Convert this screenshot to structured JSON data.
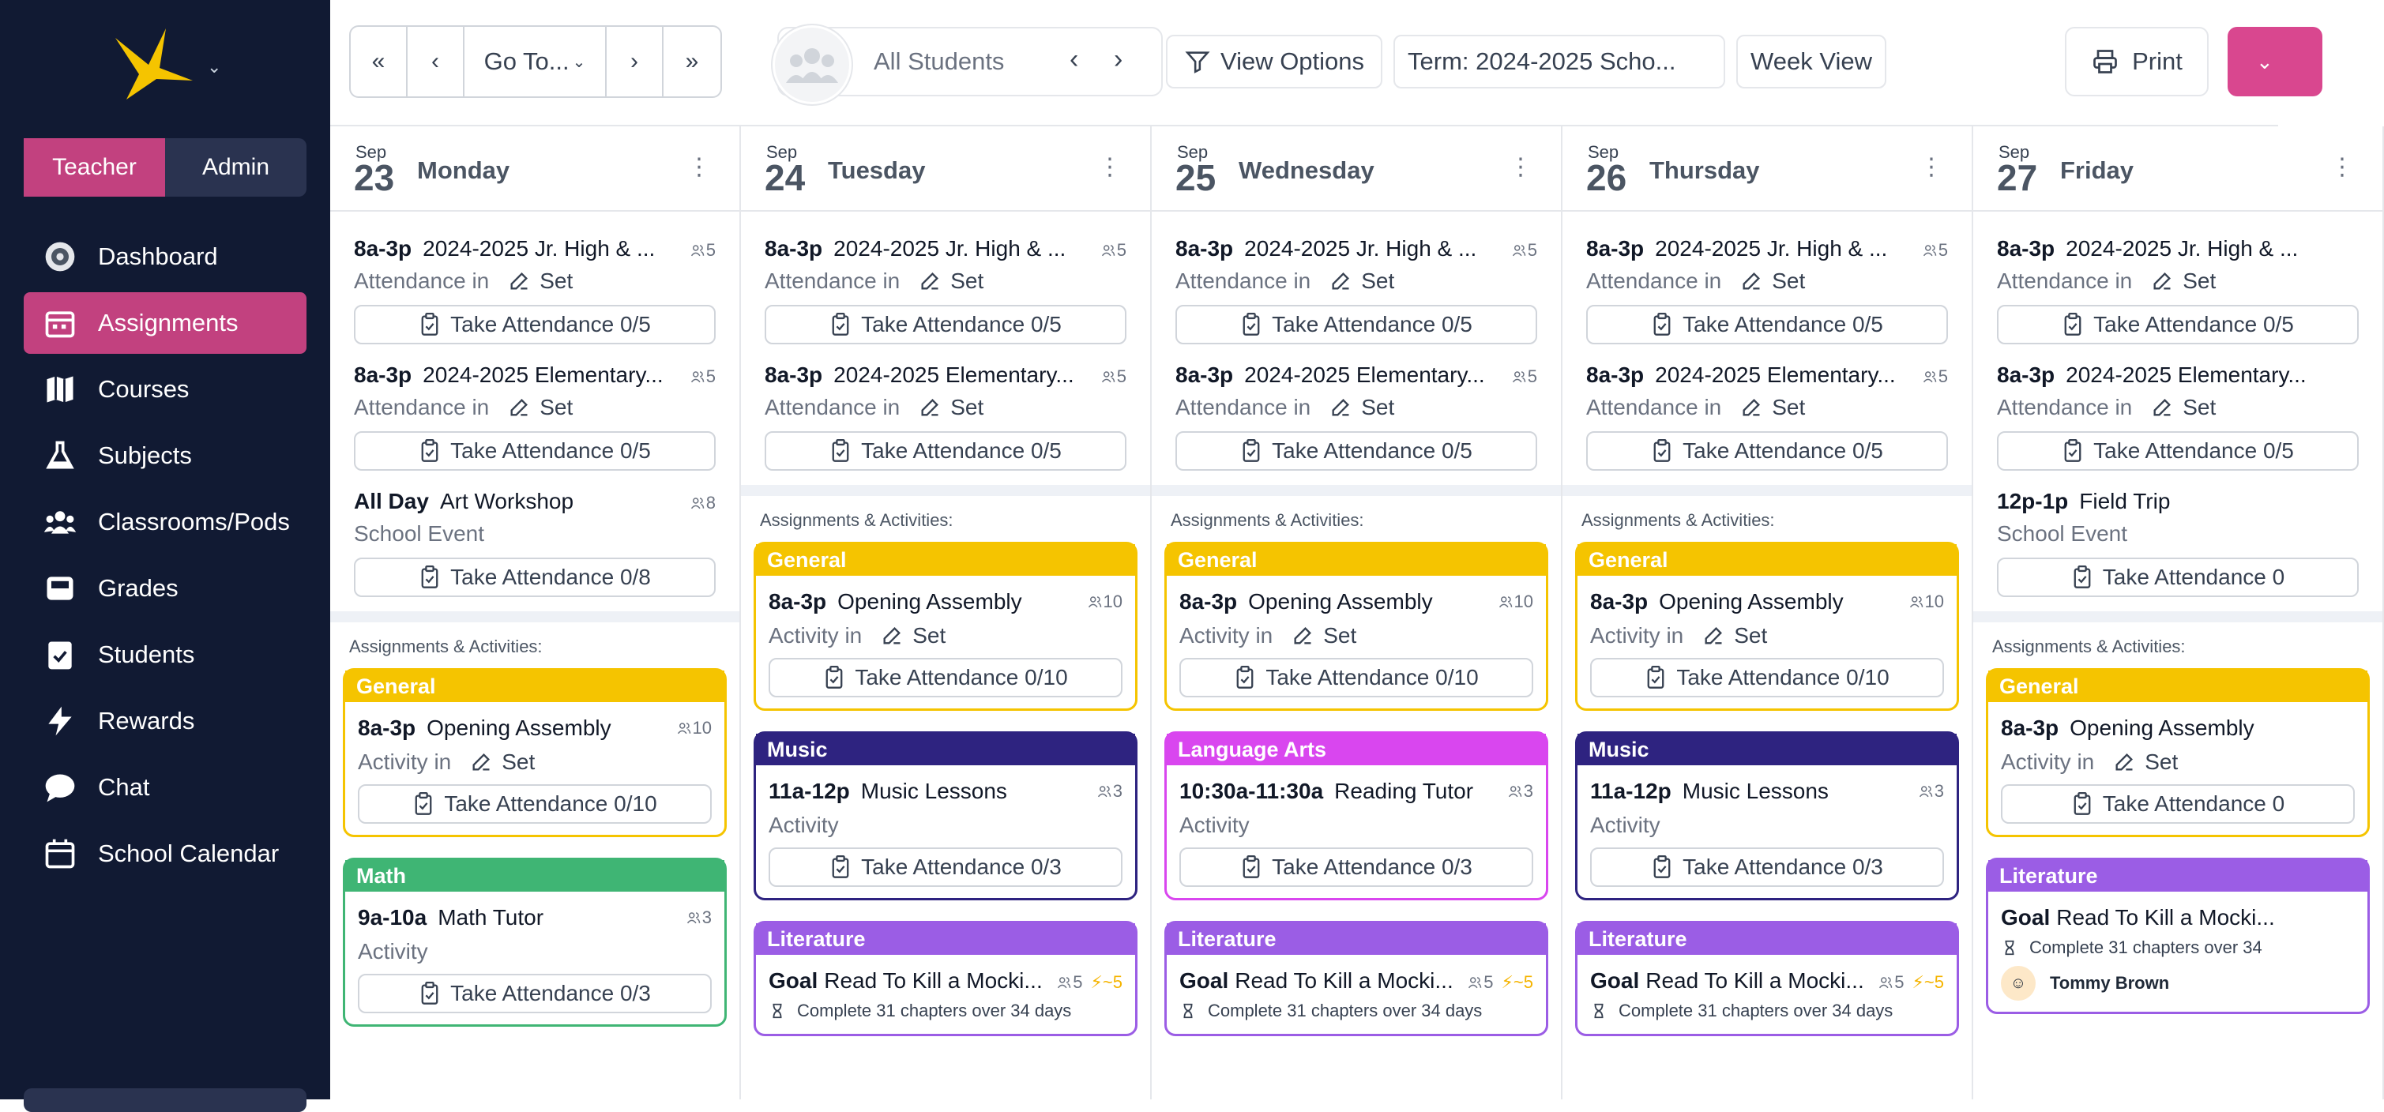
{
  "sidebar": {
    "roles": [
      "Teacher",
      "Admin"
    ],
    "active_role": "Teacher",
    "items": [
      {
        "label": "Dashboard",
        "icon": "dashboard-icon"
      },
      {
        "label": "Assignments",
        "icon": "calendar-icon"
      },
      {
        "label": "Courses",
        "icon": "map-icon"
      },
      {
        "label": "Subjects",
        "icon": "flask-icon"
      },
      {
        "label": "Classrooms/Pods",
        "icon": "users-icon"
      },
      {
        "label": "Grades",
        "icon": "inbox-icon"
      },
      {
        "label": "Students",
        "icon": "clipboard-check-icon"
      },
      {
        "label": "Rewards",
        "icon": "bolt-icon"
      },
      {
        "label": "Chat",
        "icon": "chat-icon"
      },
      {
        "label": "School Calendar",
        "icon": "calendar-outline-icon"
      }
    ],
    "active_item": "Assignments",
    "colors": {
      "bg": "#111a33",
      "accent": "#c2417f"
    }
  },
  "toolbar": {
    "first_label": "«",
    "prev_label": "‹",
    "goto_label": "Go To...",
    "next_label": "›",
    "last_label": "»",
    "student_filter": "All Students",
    "view_options": "View Options",
    "term": "Term: 2024-2025 Scho...",
    "week_view": "Week View",
    "print": "Print"
  },
  "calendar": {
    "section_label": "Assignments & Activities:",
    "days": [
      {
        "month": "Sep",
        "num": "23",
        "name": "Monday",
        "events": [
          {
            "time": "8a-3p",
            "title": "2024-2025 Jr. High & ...",
            "count": "5",
            "sub": "Attendance in",
            "set": "Set",
            "attendance": "Take Attendance 0/5"
          },
          {
            "time": "8a-3p",
            "title": "2024-2025 Elementary...",
            "count": "5",
            "sub": "Attendance in",
            "set": "Set",
            "attendance": "Take Attendance 0/5"
          },
          {
            "time": "All Day",
            "title": "Art Workshop",
            "count": "8",
            "sub": "School Event",
            "set": "",
            "attendance": "Take Attendance 0/8"
          }
        ],
        "cards": [
          {
            "category": "General",
            "color": "#f5c400",
            "time": "8a-3p",
            "title": "Opening Assembly",
            "count": "10",
            "sub": "Activity in",
            "set": "Set",
            "attendance": "Take Attendance 0/10"
          },
          {
            "category": "Math",
            "color": "#3fb574",
            "time": "9a-10a",
            "title": "Math Tutor",
            "count": "3",
            "sub": "Activity",
            "set": "",
            "attendance": "Take Attendance 0/3"
          }
        ]
      },
      {
        "month": "Sep",
        "num": "24",
        "name": "Tuesday",
        "events": [
          {
            "time": "8a-3p",
            "title": "2024-2025 Jr. High & ...",
            "count": "5",
            "sub": "Attendance in",
            "set": "Set",
            "attendance": "Take Attendance 0/5"
          },
          {
            "time": "8a-3p",
            "title": "2024-2025 Elementary...",
            "count": "5",
            "sub": "Attendance in",
            "set": "Set",
            "attendance": "Take Attendance 0/5"
          }
        ],
        "cards": [
          {
            "category": "General",
            "color": "#f5c400",
            "time": "8a-3p",
            "title": "Opening Assembly",
            "count": "10",
            "sub": "Activity in",
            "set": "Set",
            "attendance": "Take Attendance 0/10"
          },
          {
            "category": "Music",
            "color": "#2e2380",
            "time": "11a-12p",
            "title": "Music Lessons",
            "count": "3",
            "sub": "Activity",
            "set": "",
            "attendance": "Take Attendance 0/3"
          },
          {
            "category": "Literature",
            "color": "#9b5de5",
            "goal": "Goal",
            "title": "Read To Kill a Mocki...",
            "count": "5",
            "points": "~5",
            "detail": "Complete 31 chapters over 34 days"
          }
        ]
      },
      {
        "month": "Sep",
        "num": "25",
        "name": "Wednesday",
        "events": [
          {
            "time": "8a-3p",
            "title": "2024-2025 Jr. High & ...",
            "count": "5",
            "sub": "Attendance in",
            "set": "Set",
            "attendance": "Take Attendance 0/5"
          },
          {
            "time": "8a-3p",
            "title": "2024-2025 Elementary...",
            "count": "5",
            "sub": "Attendance in",
            "set": "Set",
            "attendance": "Take Attendance 0/5"
          }
        ],
        "cards": [
          {
            "category": "General",
            "color": "#f5c400",
            "time": "8a-3p",
            "title": "Opening Assembly",
            "count": "10",
            "sub": "Activity in",
            "set": "Set",
            "attendance": "Take Attendance 0/10"
          },
          {
            "category": "Language Arts",
            "color": "#d946ef",
            "time": "10:30a-11:30a",
            "title": "Reading Tutor",
            "count": "3",
            "sub": "Activity",
            "set": "",
            "attendance": "Take Attendance 0/3"
          },
          {
            "category": "Literature",
            "color": "#9b5de5",
            "goal": "Goal",
            "title": "Read To Kill a Mocki...",
            "count": "5",
            "points": "~5",
            "detail": "Complete 31 chapters over 34 days"
          }
        ]
      },
      {
        "month": "Sep",
        "num": "26",
        "name": "Thursday",
        "events": [
          {
            "time": "8a-3p",
            "title": "2024-2025 Jr. High & ...",
            "count": "5",
            "sub": "Attendance in",
            "set": "Set",
            "attendance": "Take Attendance 0/5"
          },
          {
            "time": "8a-3p",
            "title": "2024-2025 Elementary...",
            "count": "5",
            "sub": "Attendance in",
            "set": "Set",
            "attendance": "Take Attendance 0/5"
          }
        ],
        "cards": [
          {
            "category": "General",
            "color": "#f5c400",
            "time": "8a-3p",
            "title": "Opening Assembly",
            "count": "10",
            "sub": "Activity in",
            "set": "Set",
            "attendance": "Take Attendance 0/10"
          },
          {
            "category": "Music",
            "color": "#2e2380",
            "time": "11a-12p",
            "title": "Music Lessons",
            "count": "3",
            "sub": "Activity",
            "set": "",
            "attendance": "Take Attendance 0/3"
          },
          {
            "category": "Literature",
            "color": "#9b5de5",
            "goal": "Goal",
            "title": "Read To Kill a Mocki...",
            "count": "5",
            "points": "~5",
            "detail": "Complete 31 chapters over 34 days"
          }
        ]
      },
      {
        "month": "Sep",
        "num": "27",
        "name": "Friday",
        "events": [
          {
            "time": "8a-3p",
            "title": "2024-2025 Jr. High & ...",
            "count": "",
            "sub": "Attendance in",
            "set": "Set",
            "attendance": "Take Attendance 0/5"
          },
          {
            "time": "8a-3p",
            "title": "2024-2025 Elementary...",
            "count": "",
            "sub": "Attendance in",
            "set": "Set",
            "attendance": "Take Attendance 0/5"
          },
          {
            "time": "12p-1p",
            "title": "Field Trip",
            "count": "",
            "sub": "School Event",
            "set": "",
            "attendance": "Take Attendance 0"
          }
        ],
        "cards": [
          {
            "category": "General",
            "color": "#f5c400",
            "time": "8a-3p",
            "title": "Opening Assembly",
            "count": "",
            "sub": "Activity in",
            "set": "Set",
            "attendance": "Take Attendance 0"
          },
          {
            "category": "Literature",
            "color": "#9b5de5",
            "goal": "Goal",
            "title": "Read To Kill a Mocki...",
            "count": "",
            "points": "",
            "detail": "Complete 31 chapters over 34",
            "student": "Tommy Brown"
          }
        ]
      }
    ]
  }
}
